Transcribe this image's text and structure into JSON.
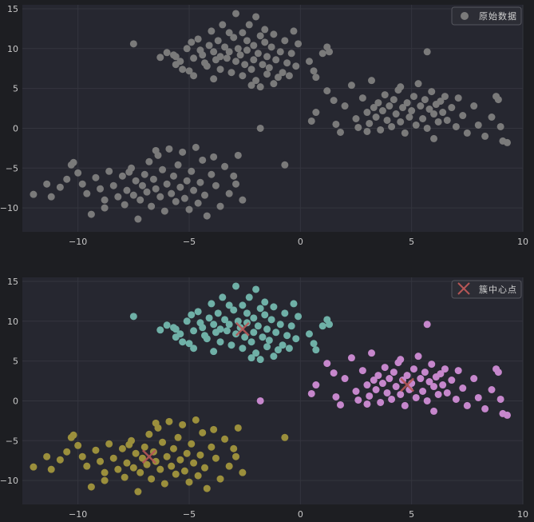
{
  "chart_data": [
    {
      "type": "scatter",
      "xlim": [
        -12.5,
        10
      ],
      "ylim": [
        -13,
        15.5
      ],
      "xticks": [
        -10,
        -5,
        0,
        5,
        10
      ],
      "yticks": [
        15,
        10,
        5,
        0,
        -5,
        -10
      ],
      "xtick_labels": [
        "−10",
        "−5",
        "0",
        "5",
        "10"
      ],
      "ytick_labels": [
        "15",
        "10",
        "5",
        "0",
        "−5",
        "−10"
      ],
      "grid": true,
      "legend_position": "top-right",
      "series": [
        {
          "name": "原始数据",
          "color": "#7a7a7a",
          "marker": "circle",
          "clusters": "all"
        }
      ]
    },
    {
      "type": "scatter",
      "xlim": [
        -12.5,
        10
      ],
      "ylim": [
        -13,
        15.5
      ],
      "xticks": [
        -10,
        -5,
        0,
        5,
        10
      ],
      "yticks": [
        15,
        10,
        5,
        0,
        -5,
        -10
      ],
      "xtick_labels": [
        "−10",
        "−5",
        "0",
        "5",
        "10"
      ],
      "ytick_labels": [
        "15",
        "10",
        "5",
        "0",
        "−5",
        "−10"
      ],
      "grid": true,
      "legend_position": "top-right",
      "cluster_colors": [
        "#6fb0a7",
        "#c687cc",
        "#9b8f3c"
      ],
      "series": [
        {
          "name": "簇中心点",
          "color": "#b65656",
          "marker": "x",
          "x": [
            -2.6,
            4.8,
            -6.8
          ],
          "y": [
            9.0,
            2.0,
            -7.0
          ]
        }
      ]
    }
  ],
  "points": [
    [
      -7.5,
      10.6,
      0
    ],
    [
      -6.3,
      8.9,
      0
    ],
    [
      -6.0,
      9.5,
      0
    ],
    [
      -5.7,
      9.2,
      0
    ],
    [
      -5.6,
      8.0,
      0
    ],
    [
      -5.4,
      8.4,
      0
    ],
    [
      -5.3,
      7.4,
      0
    ],
    [
      -5.1,
      10.0,
      0
    ],
    [
      -5.0,
      7.2,
      0
    ],
    [
      -4.8,
      8.8,
      0
    ],
    [
      -4.8,
      6.6,
      0
    ],
    [
      -4.6,
      11.2,
      0
    ],
    [
      -4.5,
      9.8,
      0
    ],
    [
      -4.4,
      9.2,
      0
    ],
    [
      -4.3,
      8.2,
      0
    ],
    [
      -4.2,
      7.8,
      0
    ],
    [
      -4.1,
      10.4,
      0
    ],
    [
      -4.0,
      12.2,
      0
    ],
    [
      -3.9,
      9.6,
      0
    ],
    [
      -3.8,
      8.6,
      0
    ],
    [
      -3.7,
      11.0,
      0
    ],
    [
      -3.6,
      9.0,
      0
    ],
    [
      -3.6,
      7.4,
      0
    ],
    [
      -3.5,
      13.0,
      0
    ],
    [
      -3.4,
      10.2,
      0
    ],
    [
      -3.3,
      8.8,
      0
    ],
    [
      -3.2,
      9.6,
      0
    ],
    [
      -3.1,
      7.0,
      0
    ],
    [
      -3.0,
      11.4,
      0
    ],
    [
      -2.9,
      14.4,
      0
    ],
    [
      -2.9,
      8.4,
      0
    ],
    [
      -2.8,
      10.0,
      0
    ],
    [
      -2.7,
      9.2,
      0
    ],
    [
      -2.6,
      12.0,
      0
    ],
    [
      -2.6,
      6.6,
      0
    ],
    [
      -2.5,
      8.0,
      0
    ],
    [
      -2.4,
      11.0,
      0
    ],
    [
      -2.4,
      9.8,
      0
    ],
    [
      -2.3,
      13.0,
      0
    ],
    [
      -2.2,
      7.4,
      0
    ],
    [
      -2.1,
      10.4,
      0
    ],
    [
      -2.1,
      8.6,
      0
    ],
    [
      -2.0,
      14.0,
      0
    ],
    [
      -2.0,
      6.0,
      0
    ],
    [
      -1.9,
      9.4,
      0
    ],
    [
      -1.8,
      11.6,
      0
    ],
    [
      -1.8,
      5.2,
      0
    ],
    [
      -1.7,
      8.0,
      0
    ],
    [
      -1.6,
      10.8,
      0
    ],
    [
      -1.6,
      12.4,
      0
    ],
    [
      -1.5,
      9.0,
      0
    ],
    [
      -1.5,
      6.8,
      0
    ],
    [
      -1.4,
      7.6,
      0
    ],
    [
      -1.3,
      10.2,
      0
    ],
    [
      -1.2,
      11.8,
      0
    ],
    [
      -1.1,
      8.6,
      0
    ],
    [
      -1.0,
      6.4,
      0
    ],
    [
      -0.9,
      9.6,
      0
    ],
    [
      -0.8,
      7.0,
      0
    ],
    [
      -0.7,
      11.0,
      0
    ],
    [
      -0.6,
      8.2,
      0
    ],
    [
      -0.5,
      6.6,
      0
    ],
    [
      -0.4,
      9.4,
      0
    ],
    [
      -0.3,
      12.2,
      0
    ],
    [
      -0.2,
      7.8,
      0
    ],
    [
      0.4,
      8.4,
      0
    ],
    [
      0.7,
      6.4,
      0
    ],
    [
      1.0,
      9.4,
      0
    ],
    [
      1.2,
      10.2,
      0
    ],
    [
      1.3,
      9.6,
      0
    ],
    [
      -5.6,
      9.0,
      0
    ],
    [
      -4.9,
      10.8,
      0
    ],
    [
      -3.9,
      6.2,
      0
    ],
    [
      -3.2,
      12.0,
      0
    ],
    [
      -2.2,
      5.4,
      0
    ],
    [
      -1.2,
      5.6,
      0
    ],
    [
      -0.1,
      10.6,
      0
    ],
    [
      0.6,
      7.2,
      0
    ],
    [
      0.5,
      0.9,
      1
    ],
    [
      0.7,
      2.0,
      1
    ],
    [
      1.2,
      4.7,
      1
    ],
    [
      1.5,
      3.5,
      1
    ],
    [
      1.6,
      0.5,
      1
    ],
    [
      1.8,
      -0.5,
      1
    ],
    [
      2.0,
      2.8,
      1
    ],
    [
      2.3,
      5.4,
      1
    ],
    [
      2.5,
      1.2,
      1
    ],
    [
      2.6,
      0.1,
      1
    ],
    [
      2.8,
      3.8,
      1
    ],
    [
      3.0,
      2.0,
      1
    ],
    [
      3.1,
      0.6,
      1
    ],
    [
      3.2,
      6.0,
      1
    ],
    [
      3.3,
      2.6,
      1
    ],
    [
      3.4,
      1.4,
      1
    ],
    [
      3.5,
      3.2,
      1
    ],
    [
      3.6,
      -0.2,
      1
    ],
    [
      3.7,
      2.2,
      1
    ],
    [
      3.8,
      4.2,
      1
    ],
    [
      3.9,
      1.0,
      1
    ],
    [
      4.0,
      2.8,
      1
    ],
    [
      4.1,
      0.2,
      1
    ],
    [
      4.2,
      3.6,
      1
    ],
    [
      4.3,
      1.8,
      1
    ],
    [
      4.4,
      4.8,
      1
    ],
    [
      4.5,
      0.8,
      1
    ],
    [
      4.6,
      2.6,
      1
    ],
    [
      4.7,
      -0.6,
      1
    ],
    [
      4.8,
      3.2,
      1
    ],
    [
      4.9,
      1.4,
      1
    ],
    [
      5.0,
      2.2,
      1
    ],
    [
      5.1,
      4.0,
      1
    ],
    [
      5.2,
      0.4,
      1
    ],
    [
      5.3,
      5.6,
      1
    ],
    [
      5.4,
      2.8,
      1
    ],
    [
      5.5,
      1.2,
      1
    ],
    [
      5.6,
      3.6,
      1
    ],
    [
      5.7,
      0.0,
      1
    ],
    [
      5.8,
      2.4,
      1
    ],
    [
      5.9,
      4.6,
      1
    ],
    [
      6.0,
      1.8,
      1
    ],
    [
      6.1,
      3.0,
      1
    ],
    [
      6.2,
      0.8,
      1
    ],
    [
      6.3,
      3.4,
      1
    ],
    [
      6.4,
      2.0,
      1
    ],
    [
      6.5,
      4.0,
      1
    ],
    [
      6.6,
      1.0,
      1
    ],
    [
      6.8,
      2.6,
      1
    ],
    [
      7.0,
      0.2,
      1
    ],
    [
      7.1,
      3.8,
      1
    ],
    [
      7.3,
      1.6,
      1
    ],
    [
      7.5,
      -0.6,
      1
    ],
    [
      7.8,
      2.8,
      1
    ],
    [
      8.0,
      0.4,
      1
    ],
    [
      8.3,
      -1.0,
      1
    ],
    [
      8.6,
      1.4,
      1
    ],
    [
      8.9,
      3.6,
      1
    ],
    [
      9.0,
      0.2,
      1
    ],
    [
      9.1,
      -1.6,
      1
    ],
    [
      9.3,
      -1.8,
      1
    ],
    [
      8.8,
      4.0,
      1
    ],
    [
      6.0,
      -1.3,
      1
    ],
    [
      3.0,
      -0.4,
      1
    ],
    [
      4.5,
      5.2,
      1
    ],
    [
      5.7,
      9.6,
      1
    ],
    [
      -1.8,
      0.0,
      1
    ],
    [
      -12.0,
      -8.3,
      2
    ],
    [
      -11.4,
      -7.0,
      2
    ],
    [
      -11.2,
      -8.6,
      2
    ],
    [
      -10.8,
      -7.4,
      2
    ],
    [
      -10.5,
      -6.4,
      2
    ],
    [
      -10.2,
      -4.3,
      2
    ],
    [
      -10.0,
      -5.6,
      2
    ],
    [
      -9.8,
      -7.0,
      2
    ],
    [
      -9.6,
      -8.2,
      2
    ],
    [
      -9.4,
      -10.8,
      2
    ],
    [
      -9.2,
      -6.2,
      2
    ],
    [
      -9.0,
      -7.6,
      2
    ],
    [
      -8.8,
      -9.0,
      2
    ],
    [
      -8.6,
      -5.4,
      2
    ],
    [
      -8.4,
      -7.2,
      2
    ],
    [
      -8.2,
      -8.6,
      2
    ],
    [
      -8.0,
      -6.0,
      2
    ],
    [
      -7.9,
      -9.6,
      2
    ],
    [
      -7.8,
      -7.8,
      2
    ],
    [
      -7.6,
      -5.0,
      2
    ],
    [
      -7.5,
      -8.4,
      2
    ],
    [
      -7.4,
      -6.6,
      2
    ],
    [
      -7.3,
      -11.4,
      2
    ],
    [
      -7.2,
      -9.0,
      2
    ],
    [
      -7.1,
      -7.2,
      2
    ],
    [
      -7.0,
      -5.8,
      2
    ],
    [
      -6.9,
      -8.0,
      2
    ],
    [
      -6.8,
      -4.2,
      2
    ],
    [
      -6.7,
      -9.8,
      2
    ],
    [
      -6.6,
      -6.4,
      2
    ],
    [
      -6.5,
      -7.6,
      2
    ],
    [
      -6.4,
      -3.4,
      2
    ],
    [
      -6.3,
      -8.6,
      2
    ],
    [
      -6.2,
      -5.2,
      2
    ],
    [
      -6.1,
      -10.4,
      2
    ],
    [
      -6.0,
      -7.0,
      2
    ],
    [
      -5.9,
      -2.6,
      2
    ],
    [
      -5.8,
      -8.2,
      2
    ],
    [
      -5.7,
      -6.0,
      2
    ],
    [
      -5.6,
      -9.2,
      2
    ],
    [
      -5.5,
      -4.6,
      2
    ],
    [
      -5.4,
      -7.4,
      2
    ],
    [
      -5.3,
      -3.0,
      2
    ],
    [
      -5.2,
      -8.8,
      2
    ],
    [
      -5.1,
      -6.6,
      2
    ],
    [
      -5.0,
      -10.2,
      2
    ],
    [
      -4.9,
      -5.4,
      2
    ],
    [
      -4.8,
      -7.8,
      2
    ],
    [
      -4.7,
      -2.4,
      2
    ],
    [
      -4.6,
      -9.4,
      2
    ],
    [
      -4.5,
      -6.8,
      2
    ],
    [
      -4.4,
      -4.0,
      2
    ],
    [
      -4.3,
      -8.4,
      2
    ],
    [
      -4.2,
      -11.0,
      2
    ],
    [
      -4.0,
      -5.8,
      2
    ],
    [
      -3.8,
      -7.2,
      2
    ],
    [
      -3.6,
      -9.8,
      2
    ],
    [
      -3.4,
      -4.8,
      2
    ],
    [
      -3.2,
      -8.2,
      2
    ],
    [
      -3.0,
      -6.0,
      2
    ],
    [
      -2.8,
      -3.4,
      2
    ],
    [
      -2.6,
      -9.0,
      2
    ],
    [
      -2.9,
      -7.0,
      2
    ],
    [
      -3.9,
      -3.6,
      2
    ],
    [
      -7.7,
      -5.5,
      2
    ],
    [
      -8.8,
      -10.0,
      2
    ],
    [
      -0.7,
      -4.6,
      2
    ],
    [
      -10.3,
      -4.6,
      2
    ],
    [
      -6.5,
      -2.8,
      2
    ]
  ]
}
